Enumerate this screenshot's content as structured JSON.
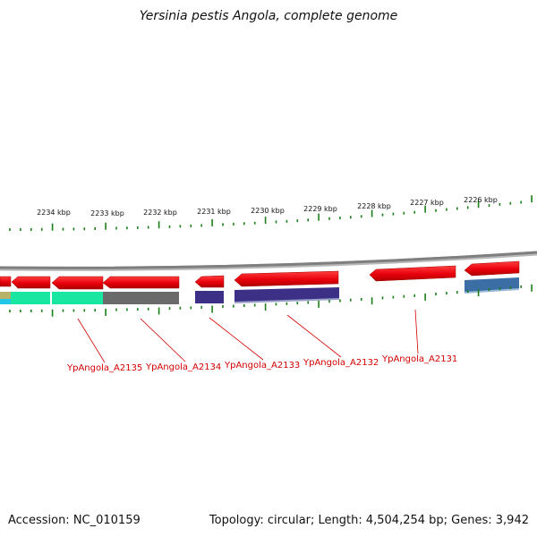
{
  "title": "Yersinia pestis Angola, complete genome",
  "footer": {
    "accession": "Accession: NC_010159",
    "summary": "Topology: circular; Length: 4,504,254 bp; Genes: 3,942"
  },
  "scale_labels": [
    "2234 kbp",
    "2233 kbp",
    "2232 kbp",
    "2231 kbp",
    "2230 kbp",
    "2229 kbp",
    "2228 kbp",
    "2227 kbp",
    "2226 kbp"
  ],
  "gene_labels": [
    "YpAngola_A2135",
    "YpAngola_A2134",
    "YpAngola_A2133",
    "YpAngola_A2132",
    "YpAngola_A2131"
  ],
  "colors": {
    "forward_feature": "#e8000b",
    "backbone": "#7f7f7f",
    "tick": "#1a7f1a",
    "label": "#d40000",
    "cog_green": "#19e6a0",
    "cog_gray": "#6a6a6a",
    "cog_indigo": "#3b2f86",
    "cog_steel": "#3c6ea6"
  }
}
